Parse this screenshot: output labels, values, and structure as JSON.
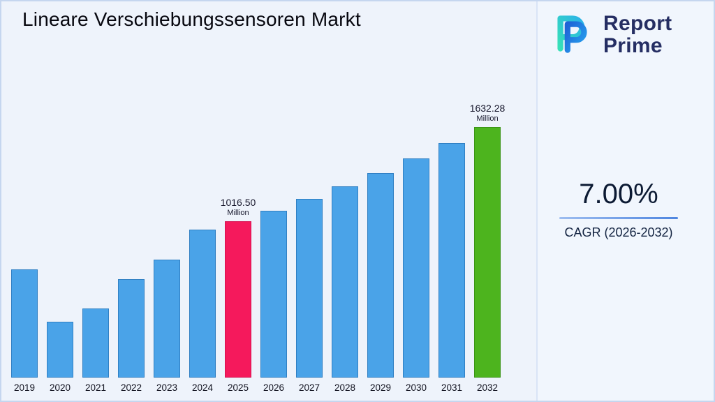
{
  "title": "Lineare Verschiebungssensoren Markt",
  "logo": {
    "line1": "Report",
    "line2": "Prime"
  },
  "cagr": {
    "value": "7.00%",
    "label": "CAGR (2026-2032)"
  },
  "chart_data": {
    "type": "bar",
    "title": "Lineare Verschiebungssensoren Markt",
    "unit": "Million",
    "categories": [
      "2019",
      "2020",
      "2021",
      "2022",
      "2023",
      "2024",
      "2025",
      "2026",
      "2027",
      "2028",
      "2029",
      "2030",
      "2031",
      "2032"
    ],
    "values": [
      706,
      364,
      450,
      639,
      769,
      962,
      1016.5,
      1087.66,
      1163.79,
      1245.26,
      1332.42,
      1425.69,
      1525.49,
      1632.28
    ],
    "ylim": [
      0,
      1700
    ],
    "grid": false,
    "legend": false,
    "annotations": [
      {
        "year": "2025",
        "value": "1016.50",
        "unit": "Million"
      },
      {
        "year": "2032",
        "value": "1632.28",
        "unit": "Million"
      }
    ],
    "colors": {
      "default_fill": "#4aa3e8",
      "default_border": "#2f7fc3",
      "special": {
        "2025": {
          "fill": "#f5195c",
          "border": "#d61050"
        },
        "2032": {
          "fill": "#4db41e",
          "border": "#3a9414"
        }
      }
    }
  }
}
